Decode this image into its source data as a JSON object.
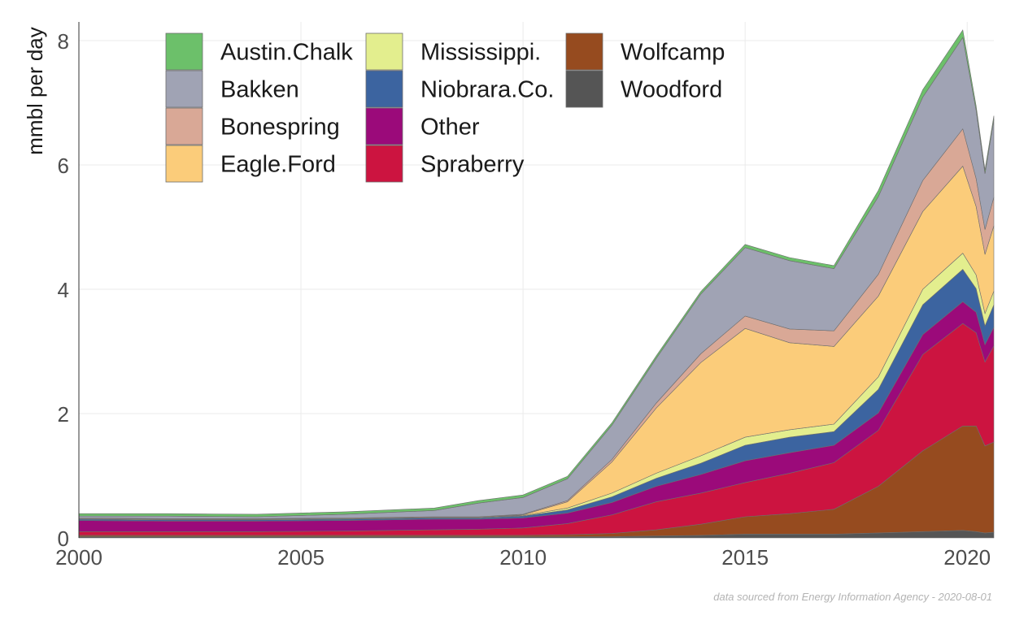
{
  "chart_data": {
    "type": "area",
    "stacked": true,
    "ylabel": "mmbl per day",
    "xlabel": "",
    "xlim": [
      2000,
      2020.6
    ],
    "ylim": [
      0,
      8.3
    ],
    "x_ticks": [
      2000,
      2005,
      2010,
      2015,
      2020
    ],
    "y_ticks": [
      0,
      2,
      4,
      6,
      8
    ],
    "grid": true,
    "legend_position": "top-left inside",
    "caption": "data sourced from Energy Information Agency - 2020-08-01",
    "x": [
      2000,
      2002,
      2004,
      2006,
      2008,
      2009,
      2010,
      2011,
      2012,
      2013,
      2014,
      2015,
      2016,
      2017,
      2018,
      2019,
      2019.9,
      2020.2,
      2020.4,
      2020.6
    ],
    "stack_order": [
      "Woodford",
      "Wolfcamp",
      "Spraberry",
      "Other",
      "Niobrara.Co.",
      "Mississippi.",
      "Eagle.Ford",
      "Bonespring",
      "Bakken",
      "Austin.Chalk"
    ],
    "series": [
      {
        "name": "Woodford",
        "color": "#555555",
        "values": [
          0.02,
          0.02,
          0.02,
          0.02,
          0.02,
          0.02,
          0.02,
          0.02,
          0.02,
          0.03,
          0.04,
          0.06,
          0.06,
          0.06,
          0.08,
          0.1,
          0.12,
          0.1,
          0.08,
          0.09
        ]
      },
      {
        "name": "Wolfcamp",
        "color": "#964b1f",
        "values": [
          0.02,
          0.02,
          0.02,
          0.02,
          0.02,
          0.02,
          0.02,
          0.03,
          0.05,
          0.1,
          0.18,
          0.28,
          0.33,
          0.4,
          0.75,
          1.3,
          1.68,
          1.7,
          1.4,
          1.45
        ]
      },
      {
        "name": "Spraberry",
        "color": "#cc1440",
        "values": [
          0.06,
          0.06,
          0.06,
          0.07,
          0.09,
          0.1,
          0.12,
          0.18,
          0.3,
          0.45,
          0.5,
          0.55,
          0.65,
          0.75,
          0.9,
          1.55,
          1.65,
          1.5,
          1.35,
          1.55
        ]
      },
      {
        "name": "Other",
        "color": "#9b0a7a",
        "values": [
          0.18,
          0.17,
          0.17,
          0.17,
          0.17,
          0.16,
          0.16,
          0.17,
          0.2,
          0.25,
          0.3,
          0.35,
          0.33,
          0.28,
          0.28,
          0.32,
          0.35,
          0.33,
          0.28,
          0.3
        ]
      },
      {
        "name": "Niobrara.Co.",
        "color": "#3c64a0",
        "values": [
          0.02,
          0.02,
          0.02,
          0.02,
          0.02,
          0.02,
          0.03,
          0.05,
          0.09,
          0.13,
          0.18,
          0.25,
          0.25,
          0.22,
          0.38,
          0.48,
          0.52,
          0.38,
          0.3,
          0.36
        ]
      },
      {
        "name": "Mississippi.",
        "color": "#e3ee8e",
        "values": [
          0.01,
          0.01,
          0.01,
          0.01,
          0.01,
          0.01,
          0.01,
          0.03,
          0.06,
          0.08,
          0.12,
          0.13,
          0.12,
          0.12,
          0.2,
          0.25,
          0.26,
          0.22,
          0.2,
          0.22
        ]
      },
      {
        "name": "Eagle.Ford",
        "color": "#fbcc7a",
        "values": [
          0.0,
          0.0,
          0.0,
          0.0,
          0.0,
          0.0,
          0.01,
          0.1,
          0.5,
          1.05,
          1.5,
          1.75,
          1.4,
          1.25,
          1.3,
          1.25,
          1.4,
          1.1,
          0.95,
          1.05
        ]
      },
      {
        "name": "Bonespring",
        "color": "#d9a896",
        "values": [
          0.01,
          0.01,
          0.01,
          0.01,
          0.01,
          0.01,
          0.01,
          0.02,
          0.04,
          0.08,
          0.14,
          0.2,
          0.22,
          0.25,
          0.35,
          0.5,
          0.6,
          0.45,
          0.4,
          0.46
        ]
      },
      {
        "name": "Bakken",
        "color": "#a0a3b4",
        "values": [
          0.03,
          0.04,
          0.03,
          0.06,
          0.1,
          0.22,
          0.27,
          0.35,
          0.55,
          0.72,
          0.96,
          1.1,
          1.1,
          1.0,
          1.25,
          1.34,
          1.47,
          1.1,
          0.9,
          1.25
        ]
      },
      {
        "name": "Austin.Chalk",
        "color": "#6cc06a",
        "values": [
          0.04,
          0.04,
          0.04,
          0.04,
          0.04,
          0.04,
          0.04,
          0.04,
          0.04,
          0.04,
          0.04,
          0.05,
          0.05,
          0.05,
          0.1,
          0.12,
          0.12,
          0.07,
          0.06,
          0.06
        ]
      }
    ],
    "legend_columns": [
      [
        "Austin.Chalk",
        "Bakken",
        "Bonespring",
        "Eagle.Ford"
      ],
      [
        "Mississippi.",
        "Niobrara.Co.",
        "Other",
        "Spraberry"
      ],
      [
        "Wolfcamp",
        "Woodford"
      ]
    ]
  }
}
